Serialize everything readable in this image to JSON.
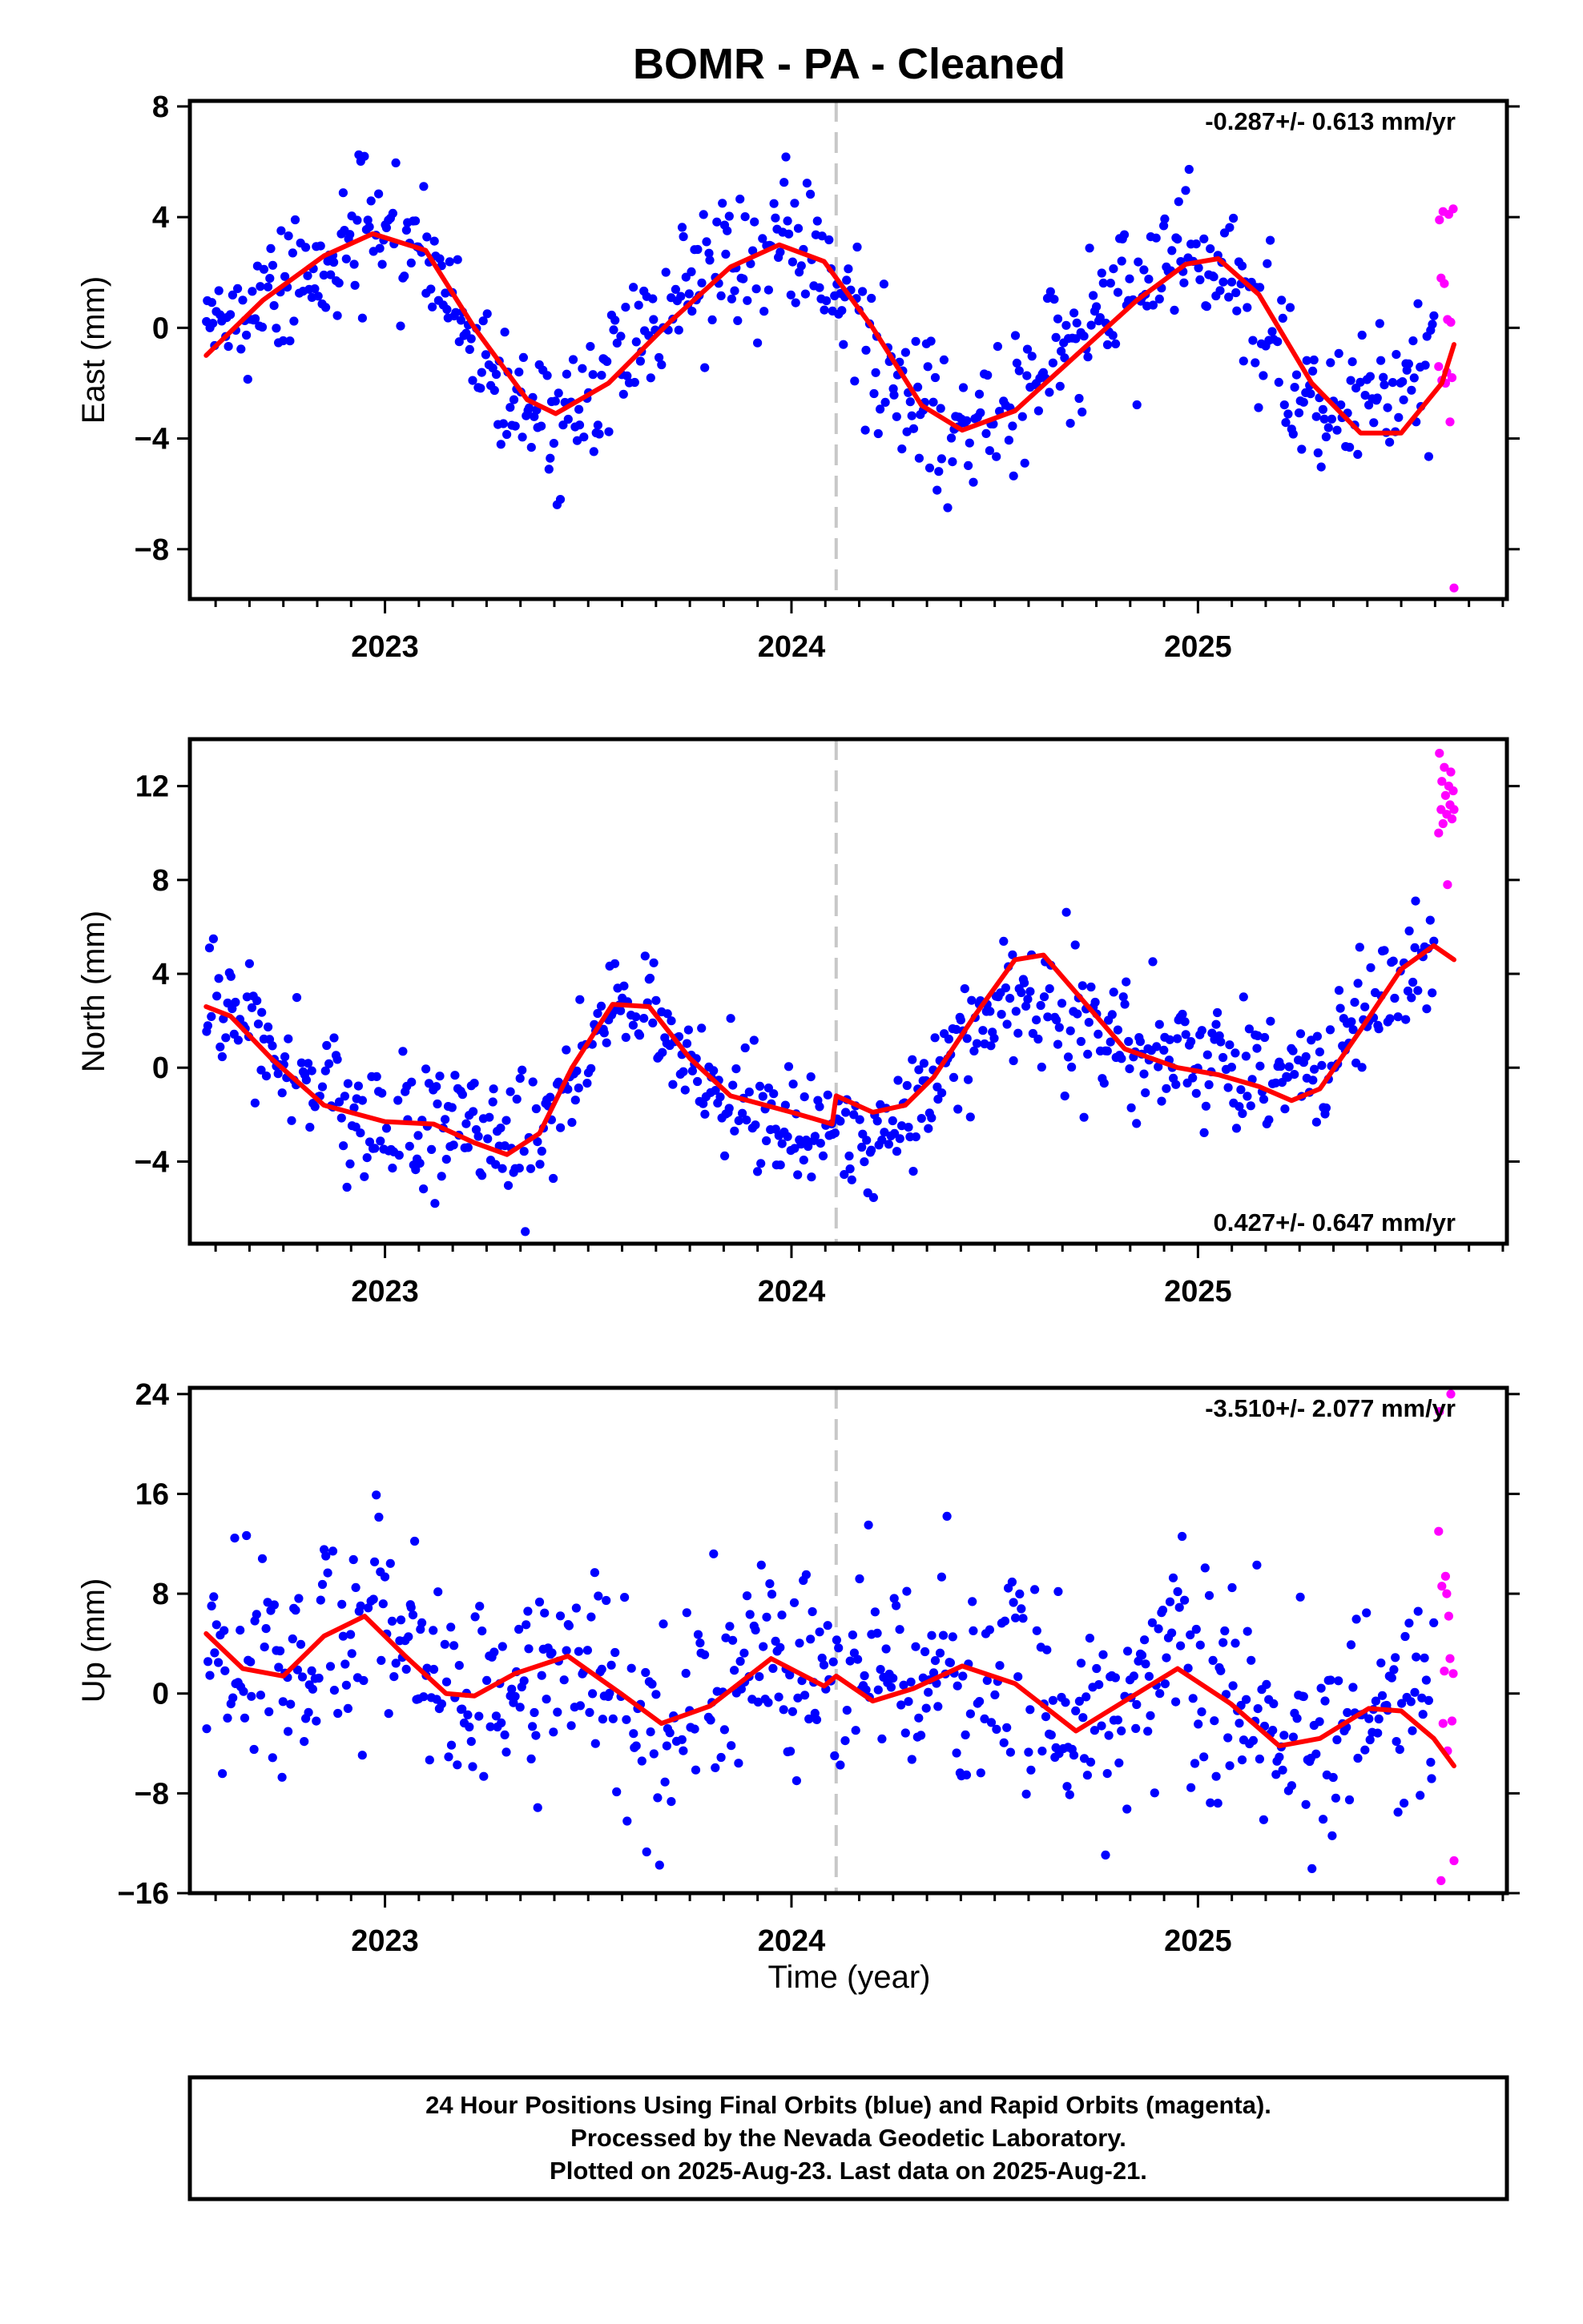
{
  "title": "BOMR  - PA - Cleaned",
  "xlabel": "Time (year)",
  "caption": {
    "line1": "24 Hour Positions Using Final Orbits (blue) and Rapid Orbits (magenta).",
    "line2": "Processed by the Nevada Geodetic Laboratory.",
    "line3": "Plotted on 2025-Aug-23. Last data on 2025-Aug-21."
  },
  "colors": {
    "final": "#0000ff",
    "rapid": "#ff00ff",
    "model": "#ff0000",
    "break_line": "#c8c8c8"
  },
  "x_range": [
    2022.52,
    2025.76
  ],
  "x_ticks": [
    "2023",
    "2024",
    "2025"
  ],
  "x_tick_values": [
    2023,
    2024,
    2025
  ],
  "break_epoch": 2024.11,
  "chart_data": [
    {
      "type": "scatter",
      "ylabel": "East (mm)",
      "ylim": [
        -9.8,
        8.2
      ],
      "yticks": [
        8,
        4,
        0,
        -4,
        -8
      ],
      "ytick_labels": [
        "8",
        "4",
        "0",
        "−4",
        "−8"
      ],
      "rate_text": "-0.287+/- 0.613 mm/yr",
      "rate_position": "top-right",
      "series": [
        {
          "role": "final",
          "x_start": 2022.56,
          "x_end": 2025.58,
          "n": 700,
          "trend": [
            [
              2022.56,
              -0.6
            ],
            [
              2022.75,
              1.6
            ],
            [
              2022.97,
              3.6
            ],
            [
              2023.12,
              2.2
            ],
            [
              2023.27,
              -1.8
            ],
            [
              2023.4,
              -3.6
            ],
            [
              2023.58,
              -1.2
            ],
            [
              2023.75,
              1.4
            ],
            [
              2023.97,
              3.4
            ],
            [
              2024.12,
              1.8
            ],
            [
              2024.27,
              -2.2
            ],
            [
              2024.4,
              -3.8
            ],
            [
              2024.58,
              -1.8
            ],
            [
              2024.75,
              0.5
            ],
            [
              2024.97,
              2.6
            ],
            [
              2025.1,
              1.6
            ],
            [
              2025.25,
              -2.4
            ],
            [
              2025.4,
              -3.0
            ],
            [
              2025.58,
              -1.6
            ]
          ],
          "scatter_sd": 1.3
        },
        {
          "role": "rapid",
          "x": [
            2025.592,
            2025.594,
            2025.598,
            2025.6,
            2025.603,
            2025.606,
            2025.609,
            2025.612,
            2025.614,
            2025.617,
            2025.62,
            2025.622,
            2025.625,
            2025.628,
            2025.63
          ],
          "y": [
            -1.4,
            3.9,
            1.8,
            -1.9,
            4.2,
            1.6,
            -2.0,
            -1.6,
            0.3,
            4.1,
            -3.4,
            0.2,
            -1.8,
            4.3,
            -9.4
          ]
        },
        {
          "role": "model",
          "x": [
            2022.56,
            2022.7,
            2022.85,
            2022.97,
            2023.1,
            2023.22,
            2023.35,
            2023.42,
            2023.55,
            2023.7,
            2023.85,
            2023.97,
            2024.08,
            2024.2,
            2024.32,
            2024.42,
            2024.55,
            2024.7,
            2024.85,
            2024.97,
            2025.05,
            2025.15,
            2025.28,
            2025.4,
            2025.5,
            2025.6,
            2025.63
          ],
          "y": [
            -1.0,
            1.0,
            2.6,
            3.4,
            2.8,
            0.0,
            -2.6,
            -3.1,
            -2.0,
            0.2,
            2.2,
            3.0,
            2.4,
            0.0,
            -2.8,
            -3.7,
            -3.0,
            -1.0,
            1.0,
            2.3,
            2.5,
            1.2,
            -2.0,
            -3.8,
            -3.8,
            -2.0,
            -0.6
          ]
        }
      ]
    },
    {
      "type": "scatter",
      "ylabel": "North (mm)",
      "ylim": [
        -7.5,
        14.0
      ],
      "yticks": [
        12,
        8,
        4,
        0,
        -4
      ],
      "ytick_labels": [
        "12",
        "8",
        "4",
        "0",
        "−4"
      ],
      "rate_text": "0.427+/- 0.647 mm/yr",
      "rate_position": "bottom-right",
      "series": [
        {
          "role": "final",
          "x_start": 2022.56,
          "x_end": 2025.58,
          "n": 700,
          "trend": [
            [
              2022.56,
              3.0
            ],
            [
              2022.7,
              1.0
            ],
            [
              2022.85,
              -1.6
            ],
            [
              2023.0,
              -2.4
            ],
            [
              2023.15,
              -2.6
            ],
            [
              2023.28,
              -3.6
            ],
            [
              2023.4,
              -2.2
            ],
            [
              2023.55,
              2.8
            ],
            [
              2023.65,
              2.4
            ],
            [
              2023.8,
              -0.8
            ],
            [
              2024.0,
              -2.8
            ],
            [
              2024.1,
              -2.6
            ],
            [
              2024.2,
              -2.8
            ],
            [
              2024.3,
              -1.6
            ],
            [
              2024.4,
              0.2
            ],
            [
              2024.5,
              2.4
            ],
            [
              2024.6,
              3.0
            ],
            [
              2024.7,
              2.2
            ],
            [
              2024.85,
              0.6
            ],
            [
              2025.0,
              0.4
            ],
            [
              2025.15,
              -0.2
            ],
            [
              2025.3,
              -0.2
            ],
            [
              2025.4,
              2.2
            ],
            [
              2025.5,
              3.6
            ],
            [
              2025.58,
              5.2
            ]
          ],
          "scatter_sd": 1.3
        },
        {
          "role": "rapid",
          "x": [
            2025.592,
            2025.594,
            2025.598,
            2025.6,
            2025.603,
            2025.606,
            2025.609,
            2025.612,
            2025.614,
            2025.617,
            2025.62,
            2025.622,
            2025.625,
            2025.628,
            2025.63
          ],
          "y": [
            10.0,
            13.4,
            11.0,
            12.2,
            10.4,
            12.8,
            11.6,
            10.8,
            7.8,
            12.0,
            11.2,
            12.6,
            10.6,
            11.8,
            11.0
          ]
        },
        {
          "role": "model",
          "x": [
            2022.56,
            2022.62,
            2022.72,
            2022.85,
            2023.0,
            2023.12,
            2023.22,
            2023.3,
            2023.38,
            2023.46,
            2023.56,
            2023.65,
            2023.75,
            2023.85,
            2024.0,
            2024.1,
            2024.11,
            2024.2,
            2024.28,
            2024.35,
            2024.45,
            2024.55,
            2024.62,
            2024.72,
            2024.82,
            2024.95,
            2025.05,
            2025.15,
            2025.23,
            2025.3,
            2025.4,
            2025.5,
            2025.58,
            2025.63
          ],
          "y": [
            2.6,
            2.2,
            0.4,
            -1.6,
            -2.3,
            -2.4,
            -3.2,
            -3.7,
            -2.8,
            0.0,
            2.7,
            2.6,
            0.4,
            -1.2,
            -1.9,
            -2.4,
            -1.2,
            -1.9,
            -1.6,
            -0.4,
            2.2,
            4.6,
            4.8,
            2.8,
            0.8,
            0.0,
            -0.3,
            -0.8,
            -1.4,
            -0.9,
            1.6,
            4.2,
            5.2,
            4.6
          ]
        }
      ]
    },
    {
      "type": "scatter",
      "ylabel": "Up (mm)",
      "ylim": [
        -16,
        24.5
      ],
      "yticks": [
        24,
        16,
        8,
        0,
        -8,
        -16
      ],
      "ytick_labels": [
        "24",
        "16",
        "8",
        "0",
        "−8",
        "−16"
      ],
      "rate_text": "-3.510+/- 2.077 mm/yr",
      "rate_position": "top-right",
      "series": [
        {
          "role": "final",
          "x_start": 2022.56,
          "x_end": 2025.58,
          "n": 700,
          "trend": [
            [
              2022.56,
              4.4
            ],
            [
              2022.75,
              1.4
            ],
            [
              2022.95,
              6.0
            ],
            [
              2023.2,
              -0.2
            ],
            [
              2023.45,
              3.0
            ],
            [
              2023.7,
              -2.4
            ],
            [
              2023.95,
              3.0
            ],
            [
              2024.15,
              0.0
            ],
            [
              2024.42,
              2.2
            ],
            [
              2024.7,
              -3.0
            ],
            [
              2024.95,
              2.0
            ],
            [
              2025.2,
              -4.2
            ],
            [
              2025.47,
              -1.2
            ],
            [
              2025.58,
              -3.4
            ]
          ],
          "scatter_sd": 4.4
        },
        {
          "role": "rapid",
          "x": [
            2025.592,
            2025.594,
            2025.598,
            2025.6,
            2025.603,
            2025.606,
            2025.609,
            2025.612,
            2025.614,
            2025.617,
            2025.62,
            2025.622,
            2025.625,
            2025.628,
            2025.63
          ],
          "y": [
            13.0,
            22.6,
            -15.0,
            8.6,
            -2.4,
            1.8,
            9.4,
            8.0,
            -4.6,
            6.2,
            2.8,
            24.0,
            -2.2,
            1.6,
            -13.4
          ]
        },
        {
          "role": "model",
          "x": [
            2022.56,
            2022.65,
            2022.75,
            2022.85,
            2022.95,
            2023.05,
            2023.15,
            2023.22,
            2023.32,
            2023.45,
            2023.58,
            2023.68,
            2023.8,
            2023.95,
            2024.08,
            2024.11,
            2024.2,
            2024.3,
            2024.42,
            2024.55,
            2024.7,
            2024.82,
            2024.95,
            2025.08,
            2025.2,
            2025.3,
            2025.42,
            2025.5,
            2025.58,
            2025.63
          ],
          "y": [
            4.8,
            2.0,
            1.4,
            4.6,
            6.2,
            3.0,
            0.0,
            -0.2,
            1.6,
            3.0,
            0.0,
            -2.4,
            -1.0,
            2.8,
            0.6,
            1.4,
            -0.6,
            0.4,
            2.2,
            0.8,
            -3.0,
            -0.6,
            2.0,
            -0.8,
            -4.2,
            -3.6,
            -1.2,
            -1.4,
            -3.6,
            -5.8
          ]
        }
      ]
    }
  ]
}
